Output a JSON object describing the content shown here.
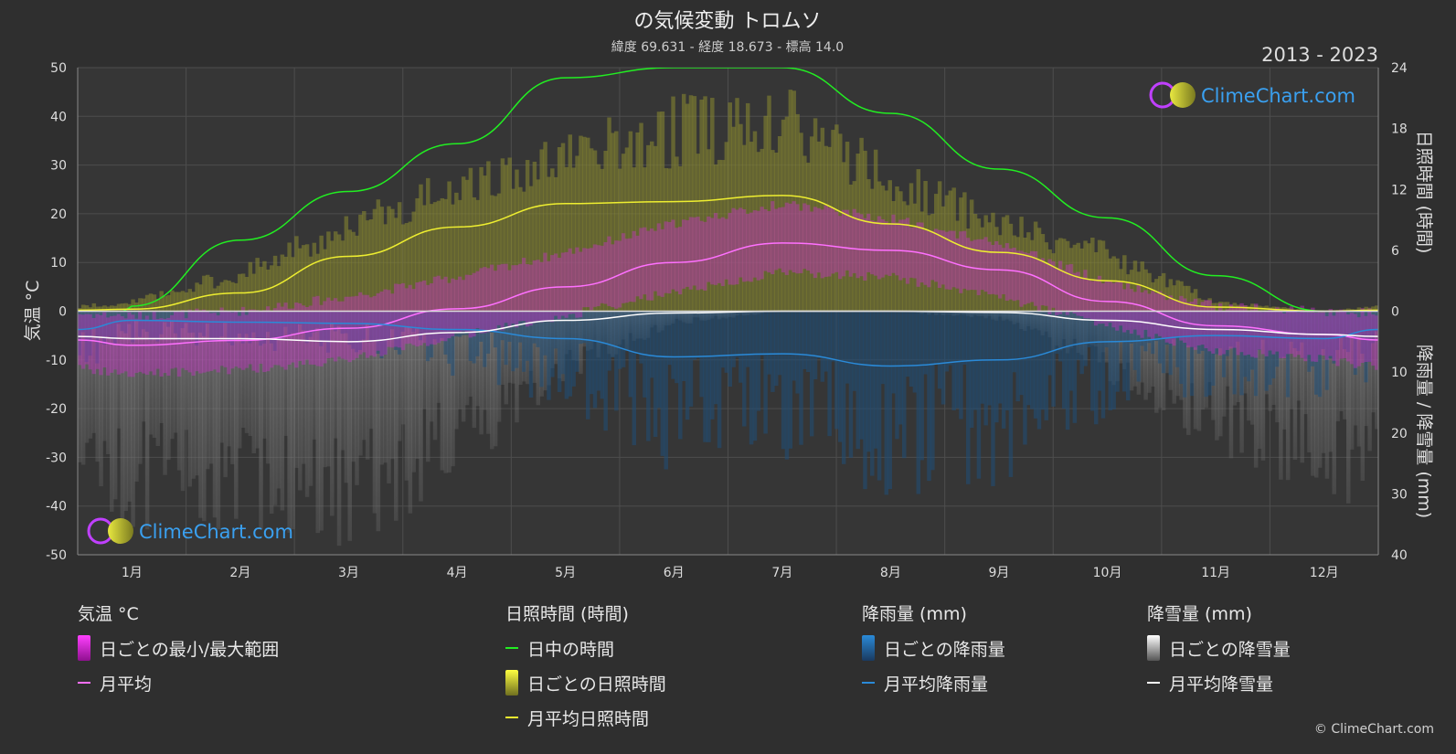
{
  "header": {
    "title": "の気候変動 トロムソ",
    "subtitle": "緯度 69.631 - 経度 18.673 - 標高 14.0",
    "period": "2013 - 2023"
  },
  "brand": {
    "name": "ClimeChart.com",
    "copyright": "© ClimeChart.com"
  },
  "colors": {
    "background": "#2f2f2f",
    "temp_range": "#e020e0",
    "temp_avg": "#ff70ff",
    "daylight": "#22ee22",
    "sunshine": "#eeee30",
    "rain": "#2a8ad8",
    "snow": "#ffffff"
  },
  "chart_data": {
    "type": "area",
    "months": [
      "1月",
      "2月",
      "3月",
      "4月",
      "5月",
      "6月",
      "7月",
      "8月",
      "9月",
      "10月",
      "11月",
      "12月"
    ],
    "left_axis": {
      "label": "気温 °C",
      "range": [
        -50,
        50
      ],
      "ticks": [
        50,
        40,
        30,
        20,
        10,
        0,
        -10,
        -20,
        -30,
        -40,
        -50
      ]
    },
    "right_axis_top": {
      "label": "日照時間 (時間)",
      "range": [
        0,
        24
      ],
      "ticks": [
        24,
        18,
        12,
        6,
        0
      ]
    },
    "right_axis_bottom": {
      "label": "降雨量 / 降雪量 (mm)",
      "range": [
        0,
        40
      ],
      "ticks": [
        10,
        20,
        30,
        40
      ]
    },
    "series": [
      {
        "name": "日中の時間",
        "unit": "hours",
        "values": [
          0.5,
          7.0,
          11.8,
          16.5,
          23.0,
          24,
          24,
          19.5,
          14.0,
          9.2,
          3.5,
          0
        ]
      },
      {
        "name": "月平均日照時間",
        "unit": "hours",
        "values": [
          0.2,
          1.8,
          5.4,
          8.3,
          10.6,
          10.8,
          11.4,
          8.6,
          5.8,
          3.0,
          0.4,
          0
        ]
      },
      {
        "name": "月平均",
        "unit": "°C",
        "values": [
          -7.0,
          -6.0,
          -3.5,
          0.5,
          5.0,
          10.0,
          14.0,
          12.5,
          8.5,
          2.0,
          -3.0,
          -4.8
        ]
      },
      {
        "name": "月平均降雨量",
        "unit": "mm",
        "values": [
          1.5,
          1.8,
          2.0,
          3.0,
          4.5,
          7.5,
          7.0,
          9.0,
          8.0,
          5.0,
          4.0,
          4.5
        ]
      },
      {
        "name": "月平均降雪量",
        "unit": "mm",
        "values": [
          4.5,
          4.5,
          5.0,
          3.5,
          1.5,
          0.3,
          0,
          0,
          0.2,
          1.5,
          3.0,
          3.8
        ]
      }
    ],
    "daily_temp_range": {
      "min": [
        -12,
        -11,
        -9,
        -4,
        0,
        5,
        9,
        8,
        4,
        -2,
        -7,
        -9
      ],
      "max": [
        -2,
        -1,
        2,
        6,
        11,
        17,
        21,
        18,
        13,
        5,
        0,
        -1
      ]
    },
    "daily_sunshine_max": [
      1,
      4,
      9,
      13,
      16,
      19,
      20,
      14,
      9,
      6,
      1,
      0
    ]
  },
  "legend": {
    "temperature": {
      "title": "気温 °C",
      "items": [
        "日ごとの最小/最大範囲",
        "月平均"
      ]
    },
    "sunshine": {
      "title": "日照時間 (時間)",
      "items": [
        "日中の時間",
        "日ごとの日照時間",
        "月平均日照時間"
      ]
    },
    "rain": {
      "title": "降雨量 (mm)",
      "items": [
        "日ごとの降雨量",
        "月平均降雨量"
      ]
    },
    "snow": {
      "title": "降雪量 (mm)",
      "items": [
        "日ごとの降雪量",
        "月平均降雪量"
      ]
    }
  }
}
